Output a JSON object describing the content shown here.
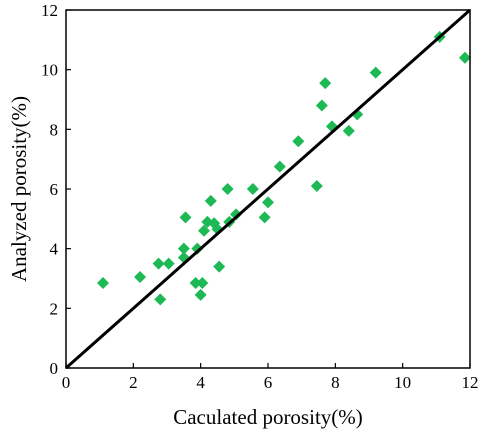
{
  "chart_data": {
    "type": "scatter",
    "xlabel": "Caculated porosity(%)",
    "ylabel": "Analyzed porosity(%)",
    "xlim": [
      0,
      12
    ],
    "ylim": [
      0,
      12
    ],
    "x_ticks": [
      "0",
      "2",
      "4",
      "6",
      "8",
      "10",
      "12"
    ],
    "y_ticks": [
      "0",
      "2",
      "4",
      "6",
      "8",
      "10",
      "12"
    ],
    "grid": false,
    "marker": "diamond",
    "marker_color": "#1db954",
    "reference_line": {
      "type": "y=x",
      "color": "#000000"
    },
    "points": [
      {
        "x": 1.1,
        "y": 2.85
      },
      {
        "x": 2.2,
        "y": 3.05
      },
      {
        "x": 2.75,
        "y": 3.5
      },
      {
        "x": 2.8,
        "y": 2.3
      },
      {
        "x": 3.05,
        "y": 3.5
      },
      {
        "x": 3.5,
        "y": 3.7
      },
      {
        "x": 3.5,
        "y": 4.0
      },
      {
        "x": 3.55,
        "y": 5.05
      },
      {
        "x": 3.85,
        "y": 2.85
      },
      {
        "x": 3.9,
        "y": 4.0
      },
      {
        "x": 4.0,
        "y": 2.45
      },
      {
        "x": 4.05,
        "y": 2.85
      },
      {
        "x": 4.1,
        "y": 4.6
      },
      {
        "x": 4.2,
        "y": 4.9
      },
      {
        "x": 4.3,
        "y": 5.6
      },
      {
        "x": 4.4,
        "y": 4.85
      },
      {
        "x": 4.5,
        "y": 4.65
      },
      {
        "x": 4.55,
        "y": 3.4
      },
      {
        "x": 4.8,
        "y": 6.0
      },
      {
        "x": 4.85,
        "y": 4.9
      },
      {
        "x": 5.05,
        "y": 5.15
      },
      {
        "x": 5.55,
        "y": 6.0
      },
      {
        "x": 5.9,
        "y": 5.05
      },
      {
        "x": 6.0,
        "y": 5.55
      },
      {
        "x": 6.35,
        "y": 6.75
      },
      {
        "x": 6.9,
        "y": 7.6
      },
      {
        "x": 7.45,
        "y": 6.1
      },
      {
        "x": 7.6,
        "y": 8.8
      },
      {
        "x": 7.7,
        "y": 9.55
      },
      {
        "x": 7.9,
        "y": 8.1
      },
      {
        "x": 8.4,
        "y": 7.95
      },
      {
        "x": 8.65,
        "y": 8.5
      },
      {
        "x": 9.2,
        "y": 9.9
      },
      {
        "x": 11.1,
        "y": 11.1
      },
      {
        "x": 11.85,
        "y": 10.4
      }
    ]
  }
}
